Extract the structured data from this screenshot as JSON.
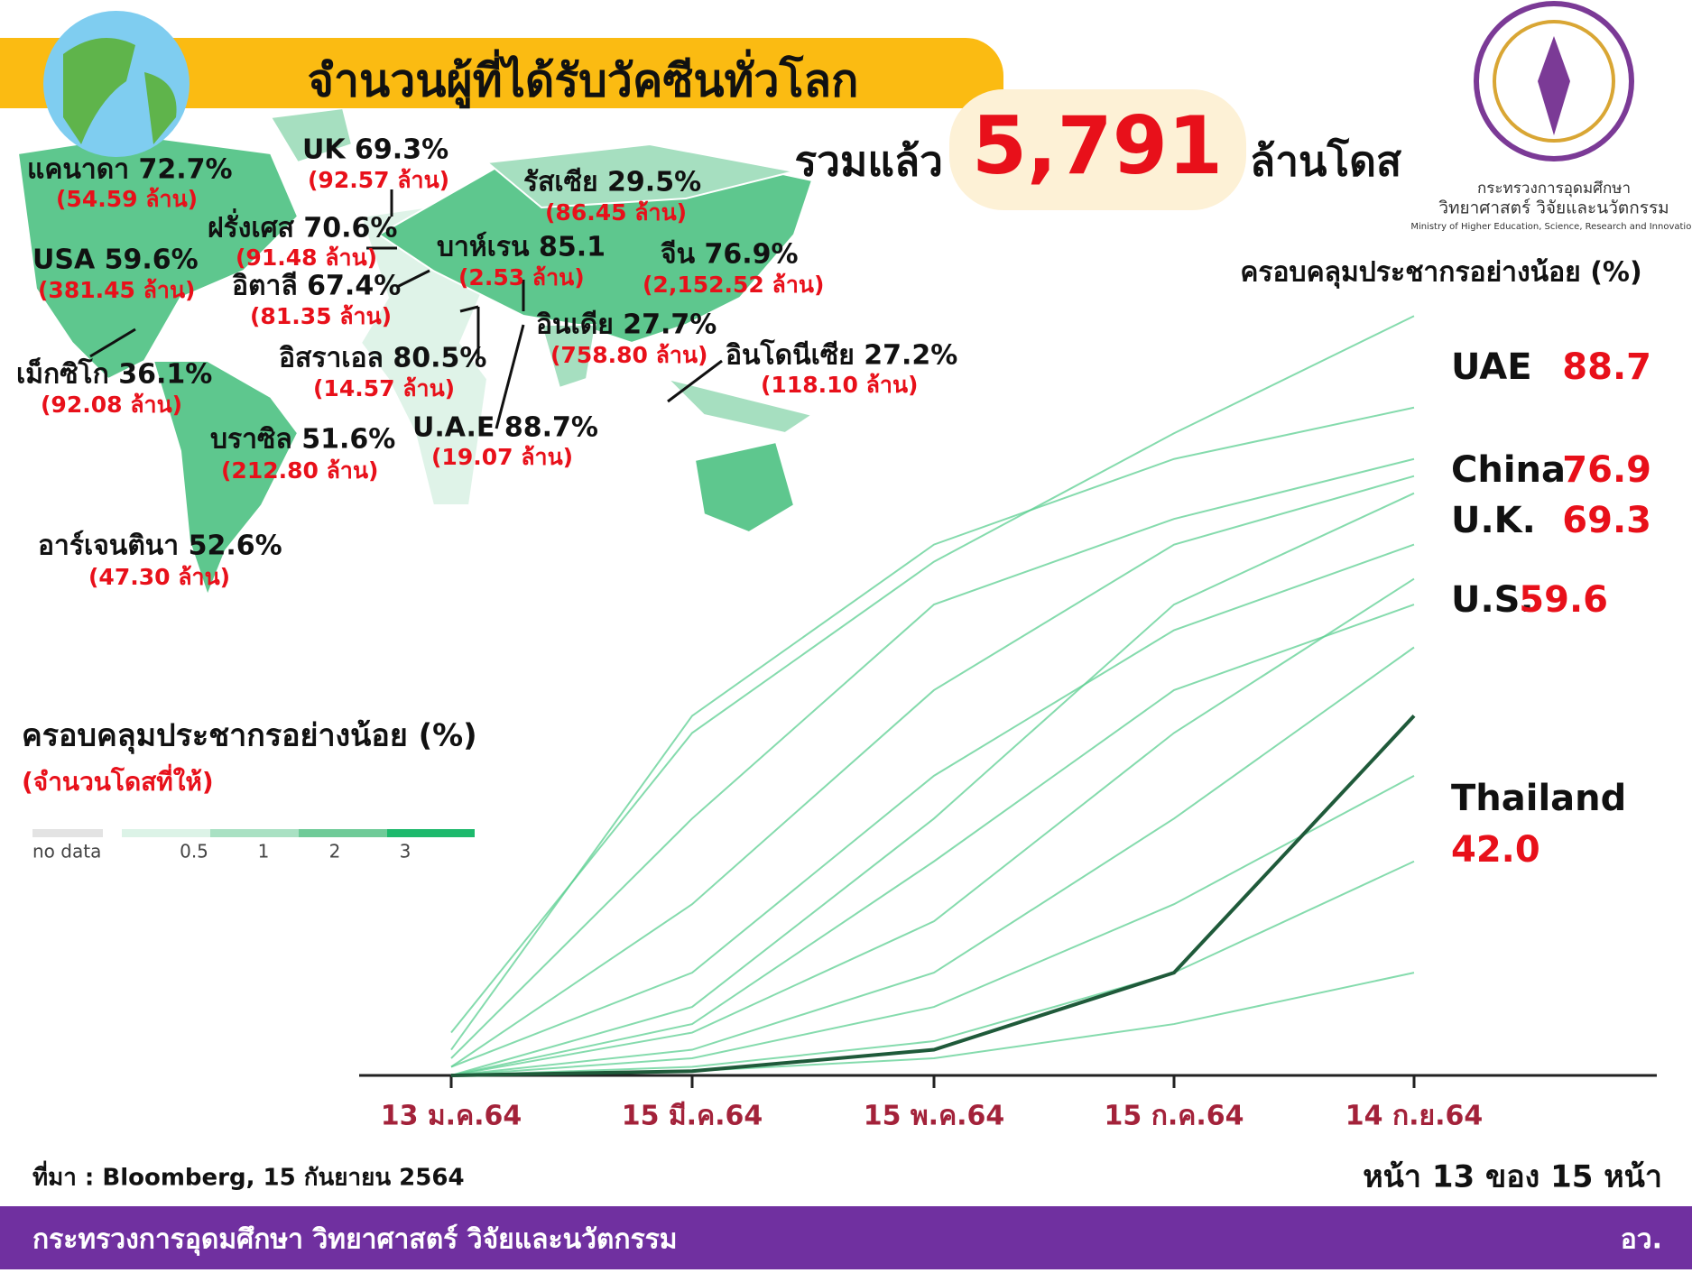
{
  "header": {
    "title": "จำนวนผู้ที่ได้รับวัคซีนทั่วโลก",
    "total_prefix": "รวมแล้ว",
    "total": "5,791",
    "total_suffix": "ล้านโดส"
  },
  "logo": {
    "line1": "กระทรวงการอุดมศึกษา",
    "line2": "วิทยาศาสตร์ วิจัยและนวัตกรรม",
    "line3": "Ministry of Higher Education, Science, Research and Innovation"
  },
  "map_labels": [
    {
      "label": "แคนาดา 72.7%",
      "doses": "(54.59 ล้าน)"
    },
    {
      "label": "UK 69.3%",
      "doses": "(92.57 ล้าน)"
    },
    {
      "label": "รัสเซีย 29.5%",
      "doses": "(86.45 ล้าน)"
    },
    {
      "label": "ฝรั่งเศส 70.6%",
      "doses": "(91.48 ล้าน)"
    },
    {
      "label": "บาห์เรน 85.1",
      "doses": "(2.53 ล้าน)"
    },
    {
      "label": "จีน 76.9%",
      "doses": "(2,152.52 ล้าน)"
    },
    {
      "label": "USA 59.6%",
      "doses": "(381.45 ล้าน)"
    },
    {
      "label": "อิตาลี 67.4%",
      "doses": "(81.35 ล้าน)"
    },
    {
      "label": "อินเดีย 27.7%",
      "doses": "(758.80 ล้าน)"
    },
    {
      "label": "อิสราเอล 80.5%",
      "doses": "(14.57 ล้าน)"
    },
    {
      "label": "อินโดนีเซีย 27.2%",
      "doses": "(118.10 ล้าน)"
    },
    {
      "label": "เม็กซิโก 36.1%",
      "doses": "(92.08 ล้าน)"
    },
    {
      "label": "U.A.E 88.7%",
      "doses": "(19.07 ล้าน)"
    },
    {
      "label": "บราซิล 51.6%",
      "doses": "(212.80 ล้าน)"
    },
    {
      "label": "อาร์เจนตินา 52.6%",
      "doses": "(47.30 ล้าน)"
    }
  ],
  "map_legend": {
    "title": "ครอบคลุมประชากรอย่างน้อย (%)",
    "subtitle": "(จำนวนโดสที่ให้)",
    "no_data": "no data",
    "steps": [
      "0.5",
      "1",
      "2",
      "3"
    ]
  },
  "chart_data": {
    "type": "line",
    "title": "ครอบคลุมประชากรอย่างน้อย (%)",
    "categories": [
      "13 ม.ค.64",
      "15 มี.ค.64",
      "15 พ.ค.64",
      "15 ก.ค.64",
      "14 ก.ย.64"
    ],
    "ylim": [
      0,
      100
    ],
    "series": [
      {
        "color": "#5ccf92",
        "values": [
          5,
          40,
          60,
          75,
          88.7
        ]
      },
      {
        "color": "#5ccf92",
        "values": [
          1,
          20,
          45,
          62,
          70
        ]
      },
      {
        "color": "#5ccf92",
        "values": [
          3,
          42,
          62,
          72,
          78
        ]
      },
      {
        "color": "#5ccf92",
        "values": [
          0,
          8,
          30,
          55,
          68
        ]
      },
      {
        "color": "#5ccf92",
        "values": [
          2,
          30,
          55,
          65,
          72
        ]
      },
      {
        "color": "#5ccf92",
        "values": [
          0,
          5,
          18,
          40,
          58
        ]
      },
      {
        "color": "#5ccf92",
        "values": [
          0,
          3,
          12,
          30,
          50
        ]
      },
      {
        "color": "#5ccf92",
        "values": [
          1,
          12,
          35,
          52,
          62
        ]
      },
      {
        "color": "#5ccf92",
        "values": [
          0,
          2,
          8,
          20,
          35
        ]
      },
      {
        "color": "#5ccf92",
        "values": [
          0,
          1,
          4,
          12,
          25
        ]
      },
      {
        "color": "#5ccf92",
        "values": [
          0,
          0.5,
          2,
          6,
          12
        ]
      },
      {
        "color": "#5ccf92",
        "values": [
          0,
          6,
          25,
          45,
          55
        ]
      },
      {
        "color": "#1f5a3a",
        "values": [
          0,
          0.5,
          3,
          12,
          42
        ]
      }
    ],
    "callouts": [
      {
        "name": "UAE",
        "value": 88.7
      },
      {
        "name": "China",
        "value": 76.9
      },
      {
        "name": "U.K.",
        "value": 69.3
      },
      {
        "name": "U.S.",
        "value": 59.6
      },
      {
        "name": "Thailand",
        "value": 42,
        "value_label": "42.0"
      }
    ]
  },
  "footer": {
    "source": "ที่มา : Bloomberg, 15 กันยายน 2564",
    "page": "หน้า 13 ของ 15 หน้า",
    "ministry": "กระทรวงการอุดมศึกษา วิทยาศาสตร์ วิจัยและนวัตกรรม",
    "short": "อว."
  }
}
